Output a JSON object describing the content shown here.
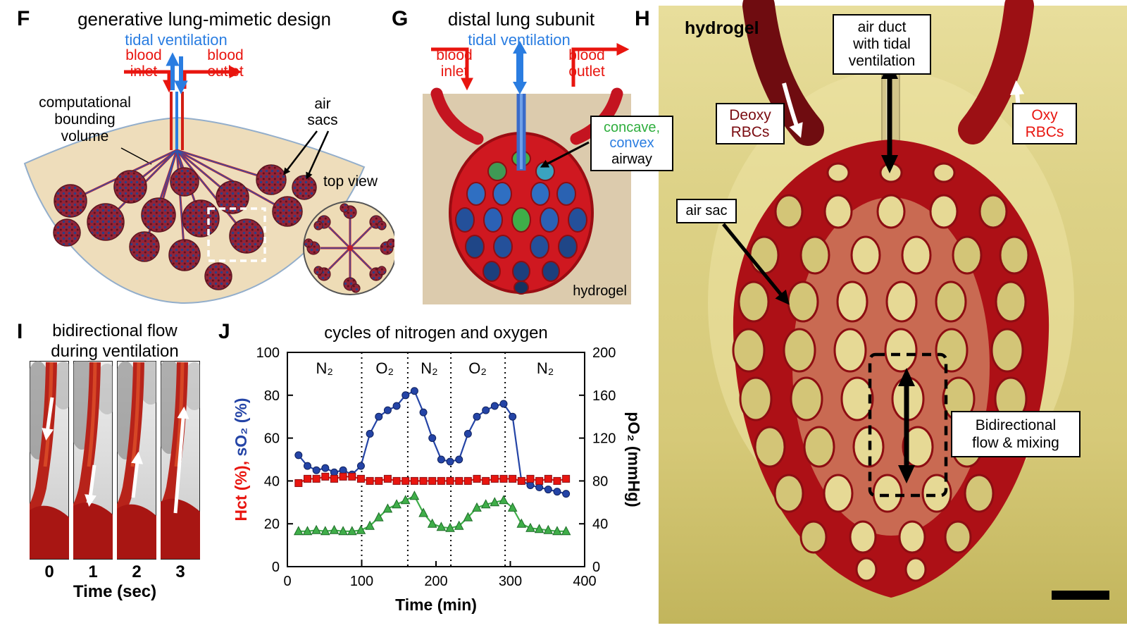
{
  "panel_f": {
    "label": "F",
    "title": "generative lung-mimetic design",
    "tidal_ventilation": "tidal ventilation",
    "blood_inlet": "blood\ninlet",
    "blood_outlet": "blood\noutlet",
    "bounding_volume": "computational\nbounding\nvolume",
    "air_sacs": "air\nsacs",
    "top_view": "top view"
  },
  "panel_g": {
    "label": "G",
    "title": "distal lung subunit",
    "tidal_ventilation": "tidal ventilation",
    "blood_inlet": "blood\ninlet",
    "blood_outlet": "blood\noutlet",
    "airway_callout": {
      "line1": "concave,",
      "line2": "convex",
      "line3": "airway"
    },
    "hydrogel": "hydrogel"
  },
  "panel_h": {
    "label": "H",
    "hydrogel": "hydrogel",
    "air_duct": "air duct\nwith tidal\nventilation",
    "deoxy": "Deoxy\nRBCs",
    "oxy": "Oxy\nRBCs",
    "air_sac": "air sac",
    "bidirectional": "Bidirectional\nflow & mixing"
  },
  "panel_i": {
    "label": "I",
    "title": "bidirectional flow\nduring ventilation",
    "times": [
      "0",
      "1",
      "2",
      "3"
    ],
    "x_label": "Time (sec)"
  },
  "panel_j": {
    "label": "J"
  },
  "colors": {
    "blood_red": "#e8150f",
    "ventilation_blue": "#2a7de1",
    "deoxy_dark_red": "#7a0b10",
    "hct_red": "#e8150f",
    "so2_blue": "#2444a6",
    "po2_green": "#3fae49",
    "hydrogel_tan": "#dccbad",
    "photo_yellow": "#d6c978"
  },
  "chart_data": {
    "type": "line",
    "title": "cycles of nitrogen and oxygen",
    "xlabel": "Time (min)",
    "ylabel_left_part1": "Hct (%),",
    "ylabel_left_color1": "#e8150f",
    "ylabel_left_part2": "sO₂ (%)",
    "ylabel_left_color2": "#2444a6",
    "ylabel_right": "pO₂ (mmHg)",
    "ylabel_right_color": "#3fae49",
    "xlim": [
      0,
      400
    ],
    "ylim_left": [
      0,
      100
    ],
    "ylim_right": [
      0,
      200
    ],
    "x_ticks": [
      0,
      100,
      200,
      300,
      400
    ],
    "y_ticks_left": [
      0,
      20,
      40,
      60,
      80,
      100
    ],
    "y_ticks_right": [
      0,
      40,
      80,
      120,
      160,
      200
    ],
    "grid": false,
    "phase_boundaries": [
      100,
      162,
      220,
      293
    ],
    "phases": [
      {
        "label": "N₂",
        "x": 50
      },
      {
        "label": "O₂",
        "x": 131
      },
      {
        "label": "N₂",
        "x": 191
      },
      {
        "label": "O₂",
        "x": 256
      },
      {
        "label": "N₂",
        "x": 347
      }
    ],
    "series": [
      {
        "name": "sO₂ (%)",
        "axis": "left",
        "marker": "circle",
        "color": "#2444a6",
        "x": [
          15,
          27,
          39,
          51,
          63,
          75,
          87,
          99,
          111,
          123,
          135,
          147,
          159,
          171,
          183,
          195,
          207,
          219,
          231,
          243,
          255,
          267,
          279,
          291,
          303,
          315,
          327,
          339,
          351,
          363,
          375
        ],
        "y": [
          52,
          47,
          45,
          46,
          44,
          45,
          43,
          47,
          62,
          70,
          73,
          75,
          80,
          82,
          72,
          60,
          50,
          49,
          50,
          62,
          70,
          73,
          75,
          76,
          70,
          40,
          38,
          37,
          36,
          35,
          34
        ]
      },
      {
        "name": "Hct (%)",
        "axis": "left",
        "marker": "square",
        "color": "#e8150f",
        "x": [
          15,
          27,
          39,
          51,
          63,
          75,
          87,
          99,
          111,
          123,
          135,
          147,
          159,
          171,
          183,
          195,
          207,
          219,
          231,
          243,
          255,
          267,
          279,
          291,
          303,
          315,
          327,
          339,
          351,
          363,
          375
        ],
        "y": [
          39,
          41,
          41,
          42,
          41,
          42,
          42,
          41,
          40,
          40,
          41,
          40,
          40,
          40,
          40,
          40,
          40,
          40,
          40,
          40,
          41,
          40,
          41,
          41,
          41,
          40,
          41,
          40,
          41,
          40,
          41
        ]
      },
      {
        "name": "pO₂ (mmHg)",
        "axis": "right",
        "marker": "triangle",
        "color": "#3fae49",
        "x": [
          15,
          27,
          39,
          51,
          63,
          75,
          87,
          99,
          111,
          123,
          135,
          147,
          159,
          171,
          183,
          195,
          207,
          219,
          231,
          243,
          255,
          267,
          279,
          291,
          303,
          315,
          327,
          339,
          351,
          363,
          375
        ],
        "y": [
          33,
          33,
          34,
          33,
          34,
          33,
          33,
          34,
          38,
          46,
          54,
          58,
          62,
          66,
          50,
          40,
          37,
          36,
          38,
          46,
          55,
          58,
          60,
          62,
          55,
          40,
          36,
          35,
          34,
          33,
          33
        ]
      }
    ]
  }
}
